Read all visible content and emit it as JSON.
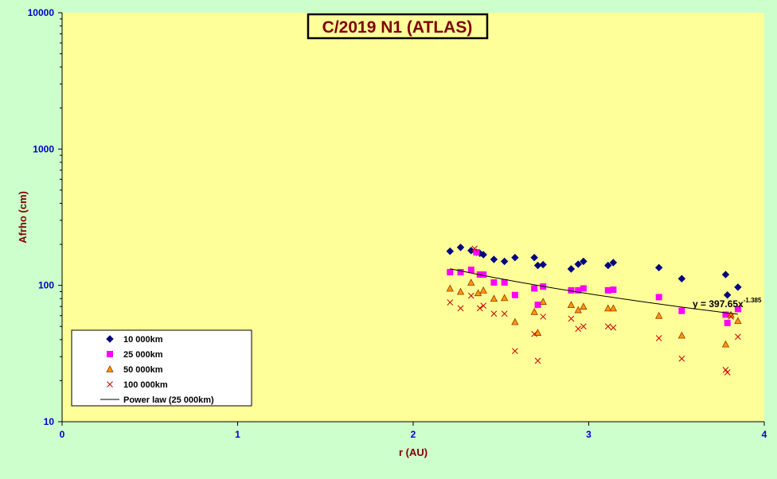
{
  "chart_data": {
    "type": "scatter",
    "title": "C/2019 N1 (ATLAS)",
    "xlabel": "r (AU)",
    "ylabel": "Afrho (cm)",
    "xlim": [
      0,
      4
    ],
    "ylim": [
      10,
      10000
    ],
    "y_scale": "log",
    "x_ticks": [
      "0",
      "1",
      "2",
      "3",
      "4"
    ],
    "y_ticks": [
      "10",
      "100",
      "1000",
      "10000"
    ],
    "grid": false,
    "legend_position": "bottom-left",
    "series": [
      {
        "name": "10 000km",
        "marker": "diamond",
        "color": "#000080",
        "points": [
          [
            2.21,
            178
          ],
          [
            2.27,
            190
          ],
          [
            2.33,
            180
          ],
          [
            2.36,
            175
          ],
          [
            2.38,
            172
          ],
          [
            2.4,
            168
          ],
          [
            2.46,
            155
          ],
          [
            2.52,
            150
          ],
          [
            2.58,
            160
          ],
          [
            2.69,
            160
          ],
          [
            2.71,
            140
          ],
          [
            2.74,
            142
          ],
          [
            2.9,
            132
          ],
          [
            2.94,
            143
          ],
          [
            2.97,
            150
          ],
          [
            3.11,
            140
          ],
          [
            3.14,
            147
          ],
          [
            3.4,
            135
          ],
          [
            3.53,
            112
          ],
          [
            3.78,
            120
          ],
          [
            3.79,
            85
          ],
          [
            3.85,
            97
          ]
        ]
      },
      {
        "name": "25 000km",
        "marker": "square",
        "color": "#ff00ff",
        "points": [
          [
            2.21,
            125
          ],
          [
            2.27,
            125
          ],
          [
            2.33,
            130
          ],
          [
            2.36,
            175
          ],
          [
            2.38,
            120
          ],
          [
            2.4,
            120
          ],
          [
            2.46,
            105
          ],
          [
            2.52,
            105
          ],
          [
            2.58,
            85
          ],
          [
            2.69,
            95
          ],
          [
            2.71,
            72
          ],
          [
            2.74,
            98
          ],
          [
            2.9,
            92
          ],
          [
            2.94,
            92
          ],
          [
            2.97,
            95
          ],
          [
            3.11,
            92
          ],
          [
            3.14,
            93
          ],
          [
            3.4,
            82
          ],
          [
            3.53,
            65
          ],
          [
            3.78,
            61
          ],
          [
            3.79,
            53
          ],
          [
            3.85,
            67
          ]
        ]
      },
      {
        "name": "50 000km",
        "marker": "triangle",
        "color": "#ff9900",
        "points": [
          [
            2.21,
            95
          ],
          [
            2.27,
            90
          ],
          [
            2.33,
            105
          ],
          [
            2.37,
            88
          ],
          [
            2.4,
            92
          ],
          [
            2.46,
            80
          ],
          [
            2.52,
            81
          ],
          [
            2.58,
            54
          ],
          [
            2.69,
            64
          ],
          [
            2.71,
            45
          ],
          [
            2.74,
            76
          ],
          [
            2.9,
            72
          ],
          [
            2.94,
            66
          ],
          [
            2.97,
            70
          ],
          [
            3.11,
            68
          ],
          [
            3.14,
            68
          ],
          [
            3.4,
            60
          ],
          [
            3.53,
            43
          ],
          [
            3.78,
            37
          ],
          [
            3.81,
            61
          ],
          [
            3.85,
            55
          ]
        ]
      },
      {
        "name": "100 000km",
        "marker": "x",
        "color": "#cc0000",
        "points": [
          [
            2.21,
            75
          ],
          [
            2.27,
            68
          ],
          [
            2.33,
            84
          ],
          [
            2.35,
            186
          ],
          [
            2.38,
            68
          ],
          [
            2.4,
            71
          ],
          [
            2.46,
            62
          ],
          [
            2.52,
            62
          ],
          [
            2.58,
            33
          ],
          [
            2.69,
            44
          ],
          [
            2.71,
            28
          ],
          [
            2.74,
            59
          ],
          [
            2.9,
            57
          ],
          [
            2.94,
            48
          ],
          [
            2.97,
            50
          ],
          [
            3.11,
            50
          ],
          [
            3.14,
            49
          ],
          [
            3.4,
            41
          ],
          [
            3.53,
            29
          ],
          [
            3.78,
            24
          ],
          [
            3.79,
            23
          ],
          [
            3.81,
            59
          ],
          [
            3.85,
            42
          ]
        ]
      }
    ],
    "trendline": {
      "name": "Power law (25 000km)",
      "type": "power",
      "coefficient": 397.65,
      "exponent": -1.385,
      "x_range": [
        2.21,
        3.85
      ],
      "equation_base": "y = 397.65x",
      "equation_exponent": "-1.385"
    }
  }
}
